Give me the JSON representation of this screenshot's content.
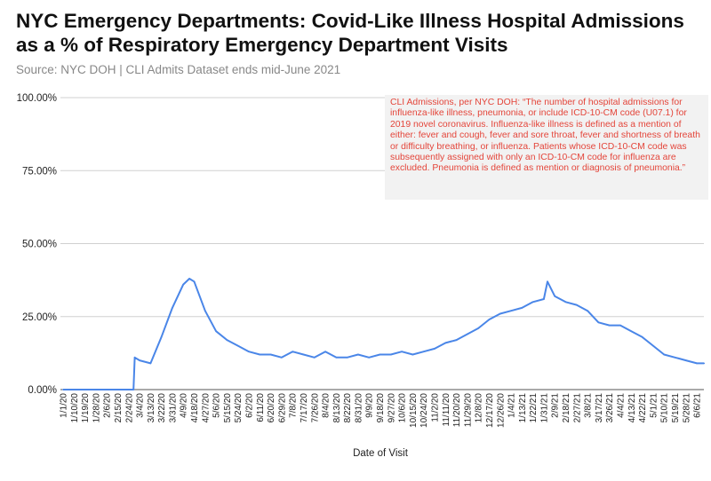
{
  "chart_data": {
    "type": "line",
    "title": "NYC Emergency Departments: Covid-Like Illness Hospital Admissions as a % of Respiratory Emergency Department Visits",
    "subtitle": "Source: NYC DOH | CLI Admits Dataset ends mid-June 2021",
    "xlabel": "Date of Visit",
    "ylabel": "",
    "ylim": [
      0,
      100
    ],
    "yticks": [
      "0.00%",
      "25.00%",
      "50.00%",
      "75.00%",
      "100.00%"
    ],
    "grid": true,
    "line_color": "#4a86e8",
    "annotation": "CLI Admissions, per NYC DOH: “The number of hospital admissions for influenza-like illness, pneumonia, or include ICD-10-CM code (U07.1) for 2019 novel coronavirus. Influenza-like illness is defined as a mention of either: fever and cough, fever and sore throat, fever and shortness of breath or difficulty breathing, or influenza. Patients whose ICD-10-CM code was subsequently assigned with only an ICD-10-CM code for influenza are excluded. Pneumonia is defined as mention or diagnosis of pneumonia.”",
    "annotation_color": "#e4453a",
    "xtick_labels": [
      "1/1/20",
      "1/10/20",
      "1/19/20",
      "1/28/20",
      "2/6/20",
      "2/15/20",
      "2/24/20",
      "3/4/20",
      "3/13/20",
      "3/22/20",
      "3/31/20",
      "4/9/20",
      "4/18/20",
      "4/27/20",
      "5/6/20",
      "5/15/20",
      "5/24/20",
      "6/2/20",
      "6/11/20",
      "6/20/20",
      "6/29/20",
      "7/8/20",
      "7/17/20",
      "7/26/20",
      "8/4/20",
      "8/13/20",
      "8/22/20",
      "8/31/20",
      "9/9/20",
      "9/18/20",
      "9/27/20",
      "10/6/20",
      "10/15/20",
      "10/24/20",
      "11/2/20",
      "11/11/20",
      "11/20/20",
      "11/29/20",
      "12/8/20",
      "12/17/20",
      "12/26/20",
      "1/4/21",
      "1/13/21",
      "1/22/21",
      "1/31/21",
      "2/9/21",
      "2/18/21",
      "2/27/21",
      "3/8/21",
      "3/17/21",
      "3/26/21",
      "4/4/21",
      "4/13/21",
      "4/22/21",
      "5/1/21",
      "5/10/21",
      "5/19/21",
      "5/28/21",
      "6/6/21"
    ],
    "series": [
      {
        "x": [
          "2020-01-01",
          "2020-01-10",
          "2020-01-19",
          "2020-01-28",
          "2020-02-06",
          "2020-02-15",
          "2020-02-24",
          "2020-02-28",
          "2020-02-29",
          "2020-03-04",
          "2020-03-13",
          "2020-03-22",
          "2020-03-31",
          "2020-04-09",
          "2020-04-14",
          "2020-04-18",
          "2020-04-27",
          "2020-05-06",
          "2020-05-15",
          "2020-05-24",
          "2020-06-02",
          "2020-06-11",
          "2020-06-20",
          "2020-06-29",
          "2020-07-08",
          "2020-07-17",
          "2020-07-26",
          "2020-08-04",
          "2020-08-13",
          "2020-08-22",
          "2020-08-31",
          "2020-09-09",
          "2020-09-18",
          "2020-09-27",
          "2020-10-06",
          "2020-10-15",
          "2020-10-24",
          "2020-11-02",
          "2020-11-11",
          "2020-11-20",
          "2020-11-29",
          "2020-12-08",
          "2020-12-17",
          "2020-12-26",
          "2021-01-04",
          "2021-01-13",
          "2021-01-22",
          "2021-01-31",
          "2021-02-03",
          "2021-02-09",
          "2021-02-18",
          "2021-02-27",
          "2021-03-08",
          "2021-03-17",
          "2021-03-26",
          "2021-04-04",
          "2021-04-13",
          "2021-04-22",
          "2021-05-01",
          "2021-05-10",
          "2021-05-19",
          "2021-05-28",
          "2021-06-06",
          "2021-06-12"
        ],
        "y": [
          0,
          0,
          0,
          0,
          0,
          0,
          0,
          0,
          11,
          10,
          9,
          18,
          28,
          36,
          38,
          37,
          27,
          20,
          17,
          15,
          13,
          12,
          12,
          11,
          13,
          12,
          11,
          13,
          11,
          11,
          12,
          11,
          12,
          12,
          13,
          12,
          13,
          14,
          16,
          17,
          19,
          21,
          24,
          26,
          27,
          28,
          30,
          31,
          37,
          32,
          30,
          29,
          27,
          23,
          22,
          22,
          20,
          18,
          15,
          12,
          11,
          10,
          9,
          9
        ]
      }
    ]
  }
}
